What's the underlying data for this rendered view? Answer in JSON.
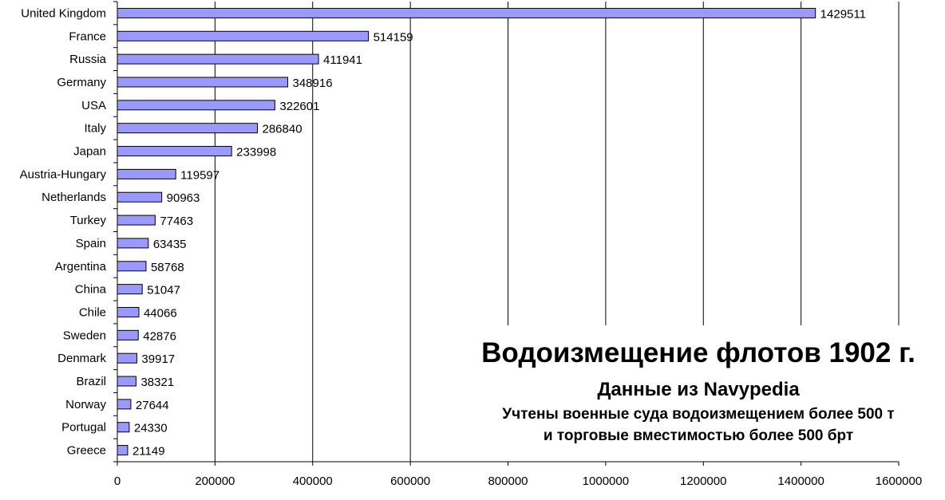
{
  "chart_data": {
    "type": "bar",
    "orientation": "horizontal",
    "title": "Водоизмещение флотов 1902 г.",
    "subtitle": "Данные из Navypedia",
    "note_line1": "Учтены военные суда водоизмещением более 500 т",
    "note_line2": "и торговые вместимостью более 500 брт",
    "categories": [
      "United Kingdom",
      "France",
      "Russia",
      "Germany",
      "USA",
      "Italy",
      "Japan",
      "Austria-Hungary",
      "Netherlands",
      "Turkey",
      "Spain",
      "Argentina",
      "China",
      "Chile",
      "Sweden",
      "Denmark",
      "Brazil",
      "Norway",
      "Portugal",
      "Greece"
    ],
    "values": [
      1429511,
      514159,
      411941,
      348916,
      322601,
      286840,
      233998,
      119597,
      90963,
      77463,
      63435,
      58768,
      51047,
      44066,
      42876,
      39917,
      38321,
      27644,
      24330,
      21149
    ],
    "data_labels": [
      "1429511",
      "514159",
      "411941",
      "348916",
      "322601",
      "286840",
      "233998",
      "119597",
      "90963",
      "77463",
      "63435",
      "58768",
      "51047",
      "44066",
      "42876",
      "39917",
      "38321",
      "27644",
      "24330",
      "21149"
    ],
    "x_ticks": [
      "0",
      "200000",
      "400000",
      "600000",
      "800000",
      "1000000",
      "1200000",
      "1400000",
      "1600000"
    ],
    "xlim": [
      0,
      1600000
    ],
    "grid": "vertical major gridlines",
    "legend": "none",
    "bar_color": "#9999ff",
    "bar_border": "#000000"
  }
}
